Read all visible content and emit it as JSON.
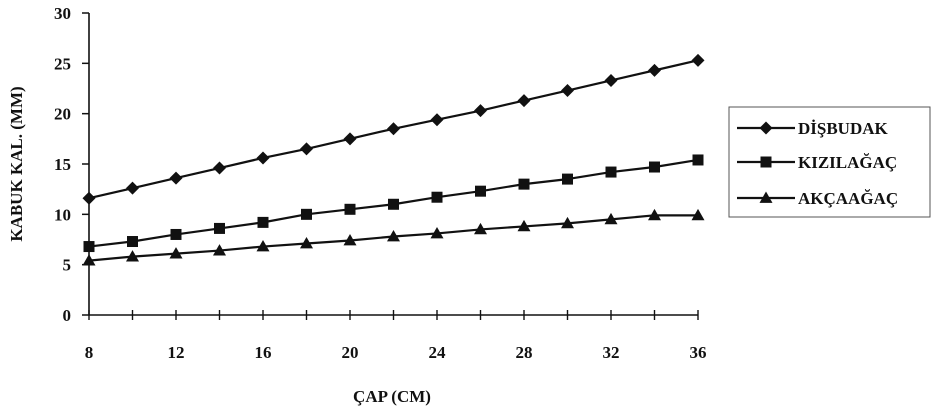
{
  "chart_data": {
    "type": "line",
    "title": "",
    "xlabel": "ÇAP (CM)",
    "ylabel": "KABUK KAL. (MM)",
    "xlim": [
      8,
      36
    ],
    "ylim": [
      0,
      30
    ],
    "x_ticks": [
      8,
      12,
      16,
      20,
      24,
      28,
      32,
      36
    ],
    "y_ticks": [
      0,
      5,
      10,
      15,
      20,
      25,
      30
    ],
    "x": [
      8,
      10,
      12,
      14,
      16,
      18,
      20,
      22,
      24,
      26,
      28,
      30,
      32,
      34,
      36
    ],
    "series": [
      {
        "name": "DİŞBUDAK",
        "marker": "diamond",
        "values": [
          11.6,
          12.6,
          13.6,
          14.6,
          15.6,
          16.5,
          17.5,
          18.5,
          19.4,
          20.3,
          21.3,
          22.3,
          23.3,
          24.3,
          25.3
        ]
      },
      {
        "name": "KIZILAĞAÇ",
        "marker": "square",
        "values": [
          6.8,
          7.3,
          8.0,
          8.6,
          9.2,
          10.0,
          10.5,
          11.0,
          11.7,
          12.3,
          13.0,
          13.5,
          14.2,
          14.7,
          15.4
        ]
      },
      {
        "name": "AKÇAAĞAÇ",
        "marker": "triangle",
        "values": [
          5.4,
          5.8,
          6.1,
          6.4,
          6.8,
          7.1,
          7.4,
          7.8,
          8.1,
          8.5,
          8.8,
          9.1,
          9.5,
          9.9,
          9.9
        ]
      }
    ],
    "grid": false,
    "legend_position": "right",
    "line_color": "#111111"
  }
}
